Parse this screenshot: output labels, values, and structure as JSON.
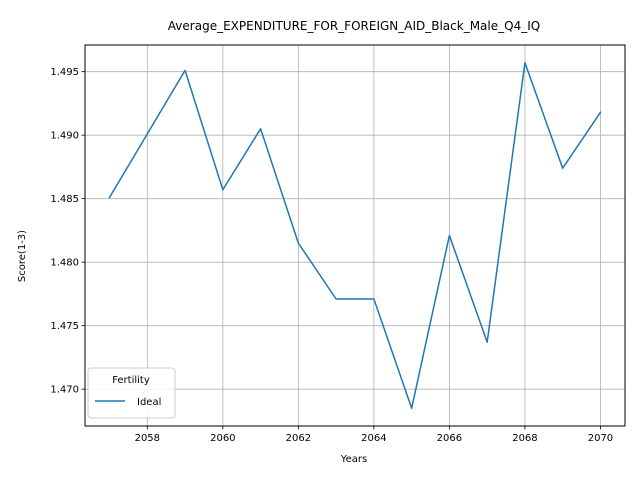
{
  "chart_data": {
    "type": "line",
    "title": "Average_EXPENDITURE_FOR_FOREIGN_AID_Black_Male_Q4_IQ",
    "xlabel": "Years",
    "ylabel": "Score(1-3)",
    "x": [
      2057,
      2058,
      2059,
      2060,
      2061,
      2062,
      2063,
      2064,
      2065,
      2066,
      2067,
      2068,
      2069,
      2070
    ],
    "series": [
      {
        "name": "Ideal",
        "color": "#1f77b4",
        "values": [
          1.4851,
          1.4901,
          1.4951,
          1.4857,
          1.4905,
          1.4815,
          1.4771,
          1.4771,
          1.4685,
          1.4821,
          1.4737,
          1.4957,
          1.4874,
          1.4918
        ]
      }
    ],
    "xlim": [
      2056.35,
      2070.65
    ],
    "ylim": [
      1.4671,
      1.4971
    ],
    "xticks": [
      2058,
      2060,
      2062,
      2064,
      2066,
      2068,
      2070
    ],
    "yticks": [
      1.47,
      1.475,
      1.48,
      1.485,
      1.49,
      1.495
    ],
    "grid": true,
    "legend": {
      "title": "Fertility",
      "placement": "lower-left"
    }
  }
}
